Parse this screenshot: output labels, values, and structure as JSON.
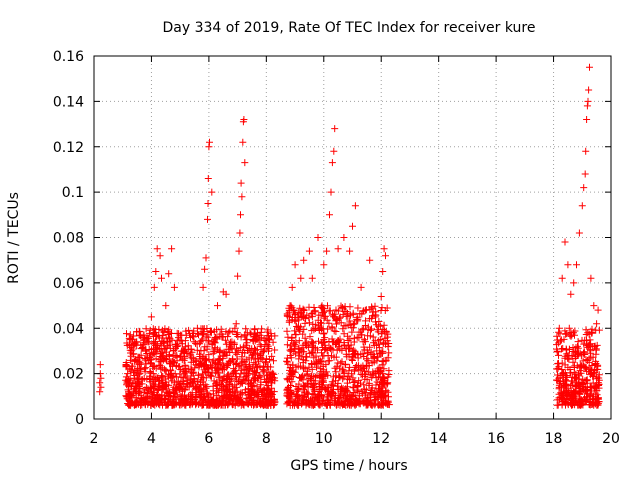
{
  "chart_data": {
    "type": "scatter",
    "title": "Day 334 of 2019, Rate Of TEC Index for receiver kure",
    "xlabel": "GPS time / hours",
    "ylabel": "ROTI / TECUs",
    "xlim": [
      2,
      20
    ],
    "ylim": [
      0,
      0.16
    ],
    "xticks": [
      2,
      4,
      6,
      8,
      10,
      12,
      14,
      16,
      18,
      20
    ],
    "yticks": [
      0,
      0.02,
      0.04,
      0.06,
      0.08,
      0.1,
      0.12,
      0.14,
      0.16
    ],
    "ytick_labels": [
      "0",
      "0.02",
      "0.04",
      "0.06",
      "0.08",
      "0.1",
      "0.12",
      "0.14",
      "0.16"
    ],
    "grid": true,
    "marker": "plus",
    "color": "#ff0000",
    "series": [
      {
        "name": "ROTI",
        "points": [
          [
            2.2,
            0.012
          ],
          [
            2.2,
            0.016
          ],
          [
            2.22,
            0.02
          ],
          [
            2.22,
            0.024
          ],
          [
            2.24,
            0.014
          ],
          [
            2.24,
            0.018
          ],
          [
            3.2,
            0.012
          ],
          [
            3.4,
            0.018
          ],
          [
            3.6,
            0.025
          ],
          [
            3.8,
            0.03
          ],
          [
            3.9,
            0.034
          ],
          [
            4.0,
            0.045
          ],
          [
            4.1,
            0.058
          ],
          [
            4.15,
            0.065
          ],
          [
            4.2,
            0.075
          ],
          [
            4.3,
            0.072
          ],
          [
            4.35,
            0.062
          ],
          [
            4.5,
            0.05
          ],
          [
            4.6,
            0.064
          ],
          [
            4.7,
            0.075
          ],
          [
            4.8,
            0.058
          ],
          [
            5.1,
            0.03
          ],
          [
            5.3,
            0.022
          ],
          [
            5.6,
            0.04
          ],
          [
            5.8,
            0.058
          ],
          [
            5.85,
            0.066
          ],
          [
            5.9,
            0.071
          ],
          [
            5.95,
            0.088
          ],
          [
            5.97,
            0.095
          ],
          [
            5.98,
            0.106
          ],
          [
            6.0,
            0.12
          ],
          [
            6.02,
            0.122
          ],
          [
            6.1,
            0.1
          ],
          [
            6.3,
            0.05
          ],
          [
            6.5,
            0.056
          ],
          [
            6.6,
            0.055
          ],
          [
            6.8,
            0.034
          ],
          [
            6.95,
            0.042
          ],
          [
            7.0,
            0.063
          ],
          [
            7.05,
            0.074
          ],
          [
            7.08,
            0.082
          ],
          [
            7.1,
            0.09
          ],
          [
            7.12,
            0.104
          ],
          [
            7.15,
            0.098
          ],
          [
            7.18,
            0.122
          ],
          [
            7.2,
            0.131
          ],
          [
            7.22,
            0.132
          ],
          [
            7.25,
            0.113
          ],
          [
            8.8,
            0.045
          ],
          [
            8.9,
            0.058
          ],
          [
            9.0,
            0.068
          ],
          [
            9.2,
            0.062
          ],
          [
            9.3,
            0.07
          ],
          [
            9.5,
            0.074
          ],
          [
            9.6,
            0.062
          ],
          [
            9.8,
            0.08
          ],
          [
            10.0,
            0.068
          ],
          [
            10.1,
            0.074
          ],
          [
            10.2,
            0.09
          ],
          [
            10.25,
            0.1
          ],
          [
            10.3,
            0.113
          ],
          [
            10.35,
            0.118
          ],
          [
            10.38,
            0.128
          ],
          [
            10.5,
            0.075
          ],
          [
            10.7,
            0.08
          ],
          [
            10.9,
            0.074
          ],
          [
            11.0,
            0.085
          ],
          [
            11.1,
            0.094
          ],
          [
            11.3,
            0.058
          ],
          [
            11.6,
            0.07
          ],
          [
            11.8,
            0.045
          ],
          [
            12.0,
            0.054
          ],
          [
            12.05,
            0.065
          ],
          [
            12.1,
            0.075
          ],
          [
            12.15,
            0.072
          ],
          [
            18.2,
            0.04
          ],
          [
            18.3,
            0.062
          ],
          [
            18.4,
            0.078
          ],
          [
            18.5,
            0.068
          ],
          [
            18.6,
            0.055
          ],
          [
            18.7,
            0.06
          ],
          [
            18.8,
            0.068
          ],
          [
            18.9,
            0.082
          ],
          [
            19.0,
            0.094
          ],
          [
            19.05,
            0.102
          ],
          [
            19.1,
            0.108
          ],
          [
            19.12,
            0.118
          ],
          [
            19.15,
            0.132
          ],
          [
            19.18,
            0.138
          ],
          [
            19.2,
            0.14
          ],
          [
            19.22,
            0.145
          ],
          [
            19.25,
            0.155
          ],
          [
            19.3,
            0.062
          ],
          [
            19.4,
            0.05
          ],
          [
            19.5,
            0.042
          ],
          [
            19.55,
            0.048
          ]
        ],
        "dense_bands": [
          {
            "x_start": 3.1,
            "x_end": 8.3,
            "typical_low": 0.006,
            "typical_high": 0.04
          },
          {
            "x_start": 8.7,
            "x_end": 12.3,
            "typical_low": 0.006,
            "typical_high": 0.05
          },
          {
            "x_start": 18.1,
            "x_end": 19.6,
            "typical_low": 0.006,
            "typical_high": 0.04
          }
        ]
      }
    ]
  }
}
